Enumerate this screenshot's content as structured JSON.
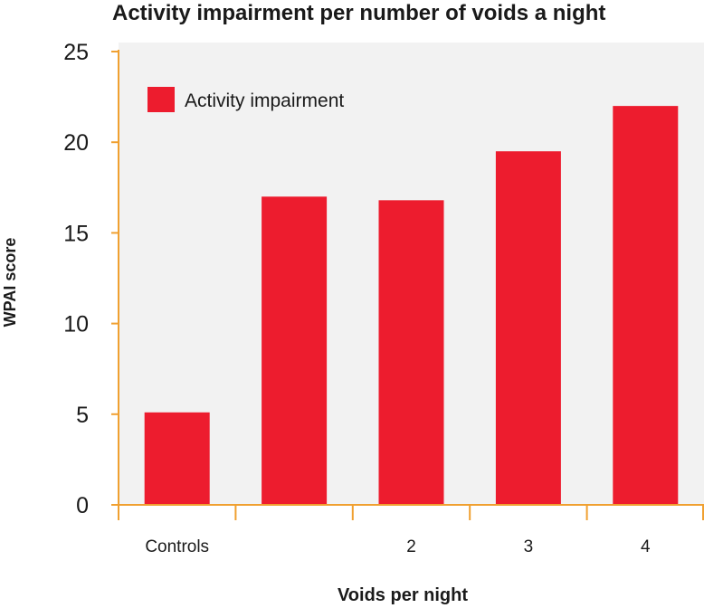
{
  "chart_data": {
    "type": "bar",
    "title": "Activity impairment per number of voids a night",
    "xlabel": "Voids per night",
    "ylabel": "WPAI score",
    "categories": [
      "Controls",
      "",
      "2",
      "3",
      "4"
    ],
    "series": [
      {
        "name": "Activity impairment",
        "values": [
          5.1,
          17.0,
          16.8,
          19.5,
          22.0
        ]
      }
    ],
    "ylim": [
      0,
      25
    ],
    "yticks": [
      "0",
      "5",
      "10",
      "15",
      "20",
      "25"
    ],
    "grid": false,
    "legend_position": "top-left",
    "colors": {
      "bar": "#ED1C2E",
      "axis": "#F0A030",
      "plot_background": "#F2F2F2",
      "text": "#1A1A1A"
    }
  }
}
